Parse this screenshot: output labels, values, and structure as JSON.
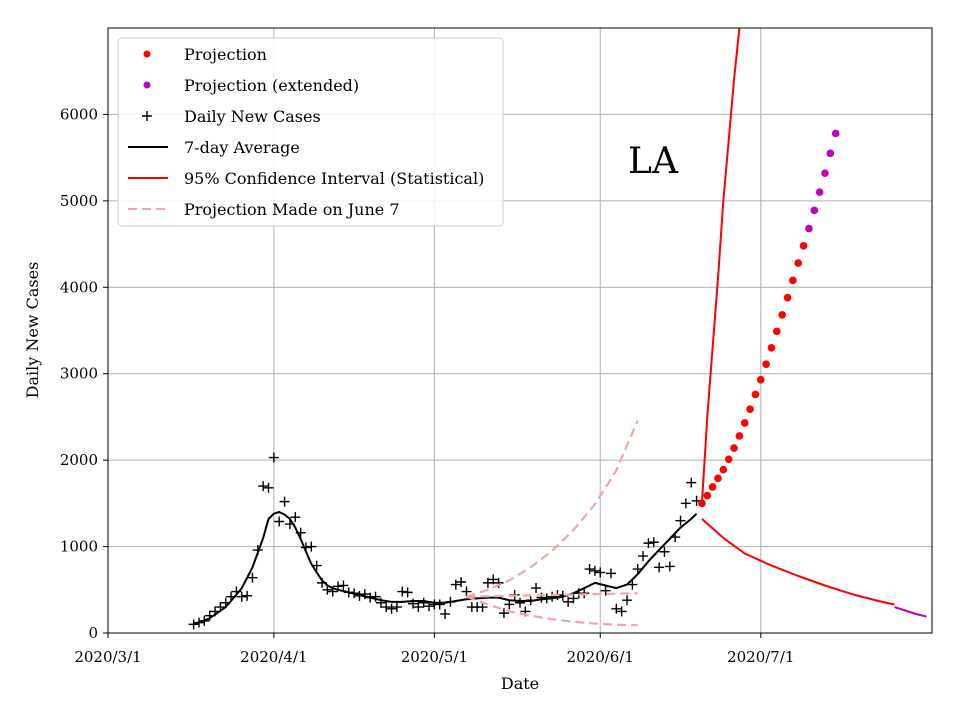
{
  "chart_data": {
    "type": "line",
    "title": "",
    "annotation": "LA",
    "xlabel": "Date",
    "ylabel": "Daily New Cases",
    "xlim": [
      "2020-03-01",
      "2020-08-02"
    ],
    "ylim": [
      0,
      7000
    ],
    "x_ticks": [
      "2020/3/1",
      "2020/4/1",
      "2020/5/1",
      "2020/6/1",
      "2020/7/1"
    ],
    "y_ticks": [
      0,
      1000,
      2000,
      3000,
      4000,
      5000,
      6000
    ],
    "grid": true,
    "legend_position": "top-left",
    "legend": [
      {
        "label": "Projection",
        "kind": "dot",
        "color": "#ff0000"
      },
      {
        "label": "Projection (extended)",
        "kind": "dot",
        "color": "#bf00bf"
      },
      {
        "label": "Daily New Cases",
        "kind": "plus",
        "color": "#000000"
      },
      {
        "label": "7-day Average",
        "kind": "line",
        "color": "#000000"
      },
      {
        "label": "95% Confidence Interval (Statistical)",
        "kind": "line",
        "color": "#ff0000"
      },
      {
        "label": "Projection Made on June 7",
        "kind": "dash",
        "color": "#f4a6a6"
      }
    ],
    "series": [
      {
        "name": "Daily New Cases",
        "marker": "plus",
        "color": "#000000",
        "points": [
          [
            "2020-03-17",
            100
          ],
          [
            "2020-03-18",
            120
          ],
          [
            "2020-03-19",
            140
          ],
          [
            "2020-03-20",
            200
          ],
          [
            "2020-03-21",
            250
          ],
          [
            "2020-03-22",
            300
          ],
          [
            "2020-03-23",
            350
          ],
          [
            "2020-03-24",
            420
          ],
          [
            "2020-03-25",
            480
          ],
          [
            "2020-03-26",
            420
          ],
          [
            "2020-03-27",
            430
          ],
          [
            "2020-03-28",
            640
          ],
          [
            "2020-03-29",
            960
          ],
          [
            "2020-03-30",
            1700
          ],
          [
            "2020-03-31",
            1680
          ],
          [
            "2020-04-01",
            2030
          ],
          [
            "2020-04-02",
            1290
          ],
          [
            "2020-04-03",
            1520
          ],
          [
            "2020-04-04",
            1260
          ],
          [
            "2020-04-05",
            1340
          ],
          [
            "2020-04-06",
            1160
          ],
          [
            "2020-04-07",
            990
          ],
          [
            "2020-04-08",
            1000
          ],
          [
            "2020-04-09",
            780
          ],
          [
            "2020-04-10",
            580
          ],
          [
            "2020-04-11",
            500
          ],
          [
            "2020-04-12",
            480
          ],
          [
            "2020-04-13",
            540
          ],
          [
            "2020-04-14",
            550
          ],
          [
            "2020-04-15",
            470
          ],
          [
            "2020-04-16",
            460
          ],
          [
            "2020-04-17",
            430
          ],
          [
            "2020-04-18",
            450
          ],
          [
            "2020-04-19",
            410
          ],
          [
            "2020-04-20",
            420
          ],
          [
            "2020-04-21",
            350
          ],
          [
            "2020-04-22",
            300
          ],
          [
            "2020-04-23",
            280
          ],
          [
            "2020-04-24",
            300
          ],
          [
            "2020-04-25",
            480
          ],
          [
            "2020-04-26",
            470
          ],
          [
            "2020-04-27",
            340
          ],
          [
            "2020-04-28",
            300
          ],
          [
            "2020-04-29",
            350
          ],
          [
            "2020-04-30",
            310
          ],
          [
            "2020-05-01",
            330
          ],
          [
            "2020-05-02",
            330
          ],
          [
            "2020-05-03",
            220
          ],
          [
            "2020-05-04",
            360
          ],
          [
            "2020-05-05",
            560
          ],
          [
            "2020-05-06",
            590
          ],
          [
            "2020-05-07",
            480
          ],
          [
            "2020-05-08",
            300
          ],
          [
            "2020-05-09",
            300
          ],
          [
            "2020-05-10",
            300
          ],
          [
            "2020-05-11",
            580
          ],
          [
            "2020-05-12",
            620
          ],
          [
            "2020-05-13",
            580
          ],
          [
            "2020-05-14",
            230
          ],
          [
            "2020-05-15",
            330
          ],
          [
            "2020-05-16",
            440
          ],
          [
            "2020-05-17",
            350
          ],
          [
            "2020-05-18",
            250
          ],
          [
            "2020-05-19",
            380
          ],
          [
            "2020-05-20",
            520
          ],
          [
            "2020-05-21",
            410
          ],
          [
            "2020-05-22",
            400
          ],
          [
            "2020-05-23",
            420
          ],
          [
            "2020-05-24",
            440
          ],
          [
            "2020-05-25",
            430
          ],
          [
            "2020-05-26",
            360
          ],
          [
            "2020-05-27",
            400
          ],
          [
            "2020-05-28",
            460
          ],
          [
            "2020-05-29",
            460
          ],
          [
            "2020-05-30",
            740
          ],
          [
            "2020-05-31",
            720
          ],
          [
            "2020-06-01",
            700
          ],
          [
            "2020-06-02",
            490
          ],
          [
            "2020-06-03",
            690
          ],
          [
            "2020-06-04",
            280
          ],
          [
            "2020-06-05",
            250
          ],
          [
            "2020-06-06",
            380
          ],
          [
            "2020-06-07",
            560
          ],
          [
            "2020-06-08",
            740
          ],
          [
            "2020-06-09",
            890
          ],
          [
            "2020-06-10",
            1040
          ],
          [
            "2020-06-11",
            1050
          ],
          [
            "2020-06-12",
            760
          ],
          [
            "2020-06-13",
            940
          ],
          [
            "2020-06-14",
            770
          ],
          [
            "2020-06-15",
            1110
          ],
          [
            "2020-06-16",
            1300
          ],
          [
            "2020-06-17",
            1500
          ],
          [
            "2020-06-18",
            1740
          ],
          [
            "2020-06-19",
            1530
          ]
        ]
      },
      {
        "name": "7-day Average",
        "style": "solid",
        "color": "#000000",
        "points": [
          [
            "2020-03-17",
            100
          ],
          [
            "2020-03-20",
            170
          ],
          [
            "2020-03-23",
            300
          ],
          [
            "2020-03-26",
            520
          ],
          [
            "2020-03-28",
            760
          ],
          [
            "2020-03-30",
            1100
          ],
          [
            "2020-03-31",
            1320
          ],
          [
            "2020-04-01",
            1380
          ],
          [
            "2020-04-02",
            1400
          ],
          [
            "2020-04-03",
            1370
          ],
          [
            "2020-04-04",
            1320
          ],
          [
            "2020-04-05",
            1220
          ],
          [
            "2020-04-06",
            1090
          ],
          [
            "2020-04-07",
            940
          ],
          [
            "2020-04-08",
            800
          ],
          [
            "2020-04-09",
            700
          ],
          [
            "2020-04-10",
            610
          ],
          [
            "2020-04-11",
            550
          ],
          [
            "2020-04-12",
            520
          ],
          [
            "2020-04-13",
            500
          ],
          [
            "2020-04-15",
            470
          ],
          [
            "2020-04-17",
            440
          ],
          [
            "2020-04-19",
            410
          ],
          [
            "2020-04-21",
            380
          ],
          [
            "2020-04-23",
            360
          ],
          [
            "2020-04-25",
            360
          ],
          [
            "2020-04-27",
            370
          ],
          [
            "2020-04-29",
            370
          ],
          [
            "2020-05-01",
            350
          ],
          [
            "2020-05-03",
            350
          ],
          [
            "2020-05-05",
            370
          ],
          [
            "2020-05-07",
            390
          ],
          [
            "2020-05-09",
            400
          ],
          [
            "2020-05-11",
            410
          ],
          [
            "2020-05-13",
            410
          ],
          [
            "2020-05-15",
            380
          ],
          [
            "2020-05-17",
            370
          ],
          [
            "2020-05-19",
            370
          ],
          [
            "2020-05-21",
            390
          ],
          [
            "2020-05-23",
            400
          ],
          [
            "2020-05-25",
            420
          ],
          [
            "2020-05-27",
            460
          ],
          [
            "2020-05-29",
            520
          ],
          [
            "2020-05-31",
            580
          ],
          [
            "2020-06-02",
            550
          ],
          [
            "2020-06-04",
            520
          ],
          [
            "2020-06-06",
            560
          ],
          [
            "2020-06-08",
            680
          ],
          [
            "2020-06-10",
            830
          ],
          [
            "2020-06-12",
            960
          ],
          [
            "2020-06-14",
            1090
          ],
          [
            "2020-06-16",
            1220
          ],
          [
            "2020-06-18",
            1320
          ],
          [
            "2020-06-19",
            1380
          ]
        ]
      },
      {
        "name": "Projection Made on June 7 (upper)",
        "style": "dash",
        "color": "#f4a6a6",
        "points": [
          [
            "2020-05-07",
            420
          ],
          [
            "2020-05-11",
            500
          ],
          [
            "2020-05-15",
            610
          ],
          [
            "2020-05-19",
            760
          ],
          [
            "2020-05-23",
            950
          ],
          [
            "2020-05-27",
            1190
          ],
          [
            "2020-05-31",
            1490
          ],
          [
            "2020-06-04",
            1880
          ],
          [
            "2020-06-08",
            2460
          ]
        ]
      },
      {
        "name": "Projection Made on June 7 (middle)",
        "style": "dash",
        "color": "#f4a6a6",
        "points": [
          [
            "2020-05-07",
            420
          ],
          [
            "2020-05-15",
            430
          ],
          [
            "2020-05-23",
            440
          ],
          [
            "2020-05-31",
            450
          ],
          [
            "2020-06-08",
            460
          ]
        ]
      },
      {
        "name": "Projection Made on June 7 (lower)",
        "style": "dash",
        "color": "#f4a6a6",
        "points": [
          [
            "2020-05-07",
            420
          ],
          [
            "2020-05-11",
            330
          ],
          [
            "2020-05-15",
            250
          ],
          [
            "2020-05-19",
            200
          ],
          [
            "2020-05-23",
            160
          ],
          [
            "2020-05-27",
            130
          ],
          [
            "2020-05-31",
            110
          ],
          [
            "2020-06-04",
            95
          ],
          [
            "2020-06-08",
            90
          ]
        ]
      },
      {
        "name": "95% Confidence Interval (upper)",
        "style": "solid",
        "color": "#ff0000",
        "points": [
          [
            "2020-06-20",
            1500
          ],
          [
            "2020-06-21",
            2500
          ],
          [
            "2020-06-22",
            3300
          ],
          [
            "2020-06-23",
            4100
          ],
          [
            "2020-06-24",
            5000
          ],
          [
            "2020-06-25",
            5700
          ],
          [
            "2020-06-26",
            6400
          ],
          [
            "2020-06-27",
            7000
          ]
        ]
      },
      {
        "name": "95% Confidence Interval (lower)",
        "style": "solid",
        "color": "#ff0000",
        "points": [
          [
            "2020-06-20",
            1320
          ],
          [
            "2020-06-24",
            1100
          ],
          [
            "2020-06-28",
            920
          ],
          [
            "2020-07-03",
            780
          ],
          [
            "2020-07-08",
            660
          ],
          [
            "2020-07-13",
            550
          ],
          [
            "2020-07-18",
            450
          ],
          [
            "2020-07-23",
            370
          ],
          [
            "2020-07-26",
            330
          ]
        ]
      },
      {
        "name": "95% Confidence Interval (lower, extended)",
        "style": "solid",
        "color": "#bf00bf",
        "points": [
          [
            "2020-07-26",
            300
          ],
          [
            "2020-07-28",
            260
          ],
          [
            "2020-07-30",
            220
          ],
          [
            "2020-08-01",
            190
          ]
        ]
      },
      {
        "name": "Projection",
        "marker": "dot",
        "color": "#ff0000",
        "points": [
          [
            "2020-06-20",
            1500
          ],
          [
            "2020-06-21",
            1590
          ],
          [
            "2020-06-22",
            1690
          ],
          [
            "2020-06-23",
            1790
          ],
          [
            "2020-06-24",
            1890
          ],
          [
            "2020-06-25",
            2010
          ],
          [
            "2020-06-26",
            2140
          ],
          [
            "2020-06-27",
            2280
          ],
          [
            "2020-06-28",
            2430
          ],
          [
            "2020-06-29",
            2590
          ],
          [
            "2020-06-30",
            2760
          ],
          [
            "2020-07-01",
            2930
          ],
          [
            "2020-07-02",
            3110
          ],
          [
            "2020-07-03",
            3300
          ],
          [
            "2020-07-04",
            3490
          ],
          [
            "2020-07-05",
            3680
          ],
          [
            "2020-07-06",
            3880
          ],
          [
            "2020-07-07",
            4080
          ],
          [
            "2020-07-08",
            4280
          ],
          [
            "2020-07-09",
            4480
          ]
        ]
      },
      {
        "name": "Projection (extended)",
        "marker": "dot",
        "color": "#bf00bf",
        "points": [
          [
            "2020-07-10",
            4680
          ],
          [
            "2020-07-11",
            4890
          ],
          [
            "2020-07-12",
            5100
          ],
          [
            "2020-07-13",
            5320
          ],
          [
            "2020-07-14",
            5550
          ],
          [
            "2020-07-15",
            5780
          ]
        ]
      }
    ]
  }
}
